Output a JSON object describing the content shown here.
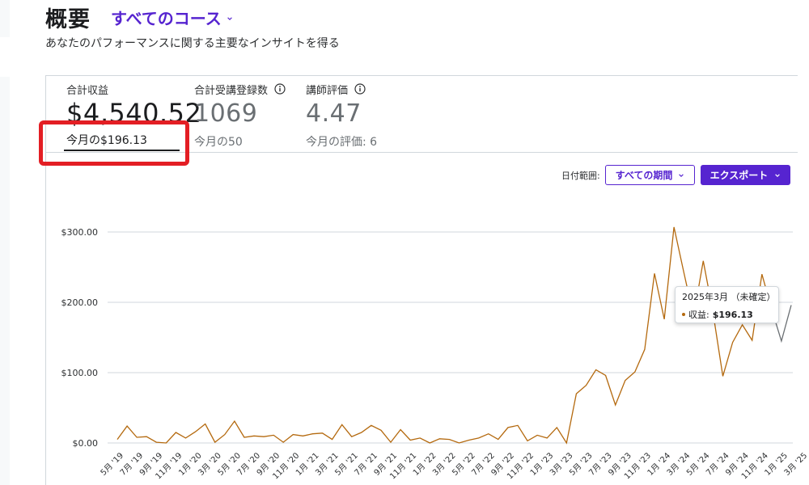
{
  "header": {
    "title": "概要",
    "course_selector": "すべてのコース",
    "subtitle": "あなたのパフォーマンスに関する主要なインサイトを得る"
  },
  "metrics": [
    {
      "label": "合計収益",
      "value": "$4,540.52",
      "sub": "今月の$196.13"
    },
    {
      "label": "合計受講登録数",
      "value": "1069",
      "sub": "今月の50"
    },
    {
      "label": "講師評価",
      "value": "4.47",
      "sub": "今月の評価: 6"
    }
  ],
  "filters": {
    "date_range_label": "日付範囲:",
    "date_range_value": "すべての期間",
    "export_label": "エクスポート"
  },
  "colors": {
    "accent": "#5624d0",
    "line": "#b4690e",
    "pending_line": "#6a6f73",
    "highlight": "#e31e24"
  },
  "icons": [
    "chevron-down-icon",
    "info-icon"
  ],
  "tooltip": {
    "title": "2025年3月 （未確定）",
    "series_label": "収益:",
    "value": "$196.13"
  },
  "chart_data": {
    "type": "line",
    "ylabel": "",
    "xlabel": "",
    "ylim": [
      0,
      310
    ],
    "y_ticks": [
      "$0.00",
      "$100.00",
      "$200.00",
      "$300.00"
    ],
    "y_tick_values": [
      0,
      100,
      200,
      300
    ],
    "x_tick_labels": [
      "5月 '19",
      "7月 '19",
      "9月 '19",
      "11月 '19",
      "1月 '20",
      "3月 '20",
      "5月 '20",
      "7月 '20",
      "9月 '20",
      "11月 '20",
      "1月 '21",
      "3月 '21",
      "5月 '21",
      "7月 '21",
      "9月 '21",
      "11月 '21",
      "1月 '22",
      "3月 '22",
      "5月 '22",
      "7月 '22",
      "9月 '22",
      "11月 '22",
      "1月 '23",
      "3月 '23",
      "5月 '23",
      "7月 '23",
      "9月 '23",
      "11月 '23",
      "1月 '24",
      "3月 '24",
      "5月 '24",
      "7月 '24",
      "9月 '24",
      "11月 '24",
      "1月 '25",
      "3月 '25"
    ],
    "grid": true,
    "legend": "none",
    "series": [
      {
        "name": "収益",
        "values": [
          5,
          24,
          8,
          9,
          1,
          0,
          15,
          7,
          16,
          27,
          1,
          12,
          31,
          8,
          10,
          9,
          11,
          1,
          12,
          10,
          13,
          14,
          5,
          26,
          9,
          15,
          25,
          18,
          1,
          19,
          4,
          7,
          0,
          6,
          5,
          0,
          4,
          7,
          13,
          5,
          22,
          25,
          3,
          11,
          7,
          22,
          0,
          70,
          82,
          104,
          96,
          54,
          89,
          101,
          133,
          241,
          176,
          307,
          243,
          180,
          259,
          185,
          95,
          143,
          168,
          146,
          240,
          190,
          145,
          196
        ]
      }
    ],
    "pending_from_index": 67
  }
}
